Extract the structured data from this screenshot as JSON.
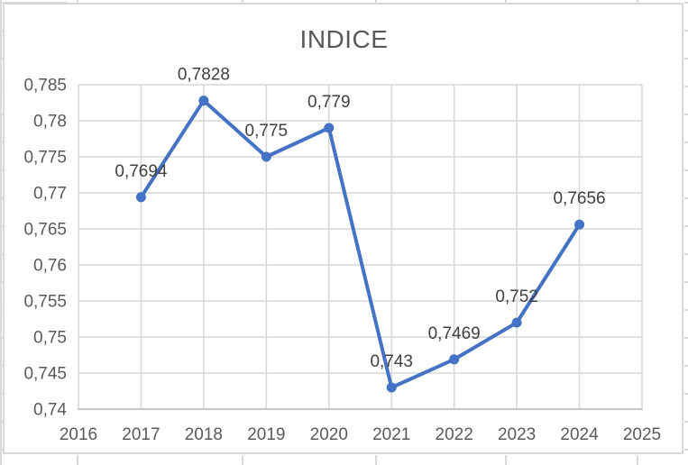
{
  "chart": {
    "title": "INDICE"
  },
  "chart_data": {
    "type": "line",
    "title": "INDICE",
    "series": [
      {
        "name": "INDICE",
        "x": [
          2017,
          2018,
          2019,
          2020,
          2021,
          2022,
          2023,
          2024
        ],
        "values": [
          0.7694,
          0.7828,
          0.775,
          0.779,
          0.743,
          0.7469,
          0.752,
          0.7656
        ],
        "point_labels": [
          "0,7694",
          "0,7828",
          "0,775",
          "0,779",
          "0,743",
          "0,7469",
          "0,752",
          "0,7656"
        ],
        "color": "#4472C4"
      }
    ],
    "xlim": [
      2016,
      2025
    ],
    "ylim": [
      0.74,
      0.785
    ],
    "xticks": {
      "values": [
        2016,
        2017,
        2018,
        2019,
        2020,
        2021,
        2022,
        2023,
        2024,
        2025
      ],
      "labels": [
        "2016",
        "2017",
        "2018",
        "2019",
        "2020",
        "2021",
        "2022",
        "2023",
        "2024",
        "2025"
      ]
    },
    "yticks": {
      "values": [
        0.74,
        0.745,
        0.75,
        0.755,
        0.76,
        0.765,
        0.77,
        0.775,
        0.78,
        0.785
      ],
      "labels": [
        "0,74",
        "0,745",
        "0,75",
        "0,755",
        "0,76",
        "0,765",
        "0,77",
        "0,775",
        "0,78",
        "0,785"
      ]
    },
    "grid": true,
    "legend": "none",
    "marker": "circle",
    "number_format": "decimal-comma"
  },
  "style": {
    "background": "#FFFFFF",
    "series_color": "#4472C4",
    "grid_color": "#D9D9D9",
    "axis_line_color": "#C9C9C9",
    "axis_text_color": "#595959",
    "title_color": "#595959",
    "data_label_color": "#404040",
    "chart_border_color": "#D9D9D9",
    "sheet_grid_color": "#D9D9D9"
  }
}
